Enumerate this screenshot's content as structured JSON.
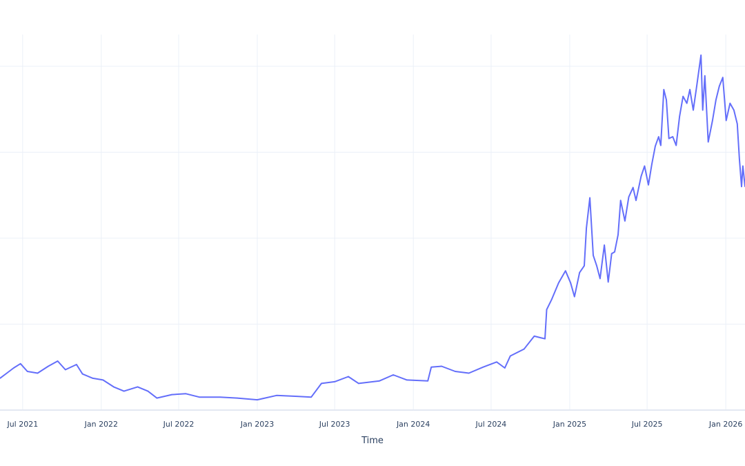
{
  "chart_data": {
    "type": "line",
    "title": "",
    "xlabel": "Time",
    "ylabel": "",
    "xlim": [
      "2021-05-09",
      "2026-02-15"
    ],
    "ylim": [
      0,
      4.37
    ],
    "y_gridlines": [
      0,
      1,
      2,
      3,
      4
    ],
    "y_tick_labels_visible": false,
    "grid": true,
    "line_color": "#636efa",
    "grid_color": "#ebf0f8",
    "x_ticks": [
      {
        "date": "2021-07-01",
        "label": "Jul 2021"
      },
      {
        "date": "2022-01-01",
        "label": "Jan 2022"
      },
      {
        "date": "2022-07-01",
        "label": "Jul 2022"
      },
      {
        "date": "2023-01-01",
        "label": "Jan 2023"
      },
      {
        "date": "2023-07-01",
        "label": "Jul 2023"
      },
      {
        "date": "2024-01-01",
        "label": "Jan 2024"
      },
      {
        "date": "2024-07-01",
        "label": "Jul 2024"
      },
      {
        "date": "2025-01-01",
        "label": "Jan 2025"
      },
      {
        "date": "2025-07-01",
        "label": "Jul 2025"
      },
      {
        "date": "2026-01-01",
        "label": "Jan 2026"
      }
    ],
    "series": [
      {
        "x": [
          "2021-05-09",
          "2021-05-25",
          "2021-06-10",
          "2021-06-26",
          "2021-07-12",
          "2021-08-05",
          "2021-08-30",
          "2021-09-21",
          "2021-10-09",
          "2021-11-04",
          "2021-11-18",
          "2021-12-12",
          "2022-01-05",
          "2022-01-30",
          "2022-02-23",
          "2022-03-27",
          "2022-04-20",
          "2022-05-11",
          "2022-06-15",
          "2022-07-18",
          "2022-08-19",
          "2022-10-06",
          "2022-11-15",
          "2023-01-01",
          "2023-02-15",
          "2023-04-04",
          "2023-05-07",
          "2023-05-31",
          "2023-07-01",
          "2023-08-02",
          "2023-08-26",
          "2023-10-14",
          "2023-11-15",
          "2023-12-17",
          "2024-02-04",
          "2024-02-12",
          "2024-03-07",
          "2024-04-08",
          "2024-05-10",
          "2024-06-12",
          "2024-07-14",
          "2024-08-02",
          "2024-08-15",
          "2024-09-16",
          "2024-10-10",
          "2024-10-26",
          "2024-11-04",
          "2024-11-08",
          "2024-11-20",
          "2024-12-06",
          "2024-12-22",
          "2025-01-03",
          "2025-01-12",
          "2025-01-24",
          "2025-02-04",
          "2025-02-09",
          "2025-02-17",
          "2025-02-25",
          "2025-03-05",
          "2025-03-13",
          "2025-03-23",
          "2025-04-01",
          "2025-04-09",
          "2025-04-16",
          "2025-04-24",
          "2025-04-30",
          "2025-05-10",
          "2025-05-19",
          "2025-05-29",
          "2025-06-05",
          "2025-06-17",
          "2025-06-25",
          "2025-07-04",
          "2025-07-12",
          "2025-07-20",
          "2025-07-28",
          "2025-08-02",
          "2025-08-09",
          "2025-08-15",
          "2025-08-21",
          "2025-08-30",
          "2025-09-07",
          "2025-09-15",
          "2025-09-23",
          "2025-10-02",
          "2025-10-09",
          "2025-10-17",
          "2025-10-25",
          "2025-11-04",
          "2025-11-08",
          "2025-11-13",
          "2025-11-21",
          "2025-12-01",
          "2025-12-09",
          "2025-12-17",
          "2025-12-25",
          "2026-01-02",
          "2026-01-11",
          "2026-01-20",
          "2026-01-28",
          "2026-02-02",
          "2026-02-07",
          "2026-02-10",
          "2026-02-15"
        ],
        "y": [
          0.37,
          0.43,
          0.49,
          0.54,
          0.45,
          0.43,
          0.51,
          0.57,
          0.47,
          0.53,
          0.42,
          0.37,
          0.35,
          0.27,
          0.22,
          0.27,
          0.22,
          0.14,
          0.18,
          0.19,
          0.15,
          0.15,
          0.14,
          0.12,
          0.17,
          0.16,
          0.15,
          0.31,
          0.33,
          0.39,
          0.31,
          0.34,
          0.41,
          0.35,
          0.34,
          0.5,
          0.51,
          0.45,
          0.43,
          0.5,
          0.56,
          0.49,
          0.63,
          0.71,
          0.86,
          0.84,
          0.83,
          1.17,
          1.29,
          1.48,
          1.62,
          1.48,
          1.32,
          1.6,
          1.68,
          2.12,
          2.47,
          1.8,
          1.68,
          1.53,
          1.92,
          1.49,
          1.82,
          1.84,
          2.04,
          2.44,
          2.2,
          2.48,
          2.59,
          2.44,
          2.72,
          2.84,
          2.62,
          2.86,
          3.07,
          3.18,
          3.08,
          3.73,
          3.61,
          3.16,
          3.18,
          3.08,
          3.42,
          3.65,
          3.57,
          3.73,
          3.49,
          3.77,
          4.13,
          3.49,
          3.89,
          3.12,
          3.37,
          3.61,
          3.77,
          3.87,
          3.37,
          3.57,
          3.49,
          3.33,
          2.92,
          2.6,
          2.84,
          2.6
        ]
      }
    ]
  }
}
